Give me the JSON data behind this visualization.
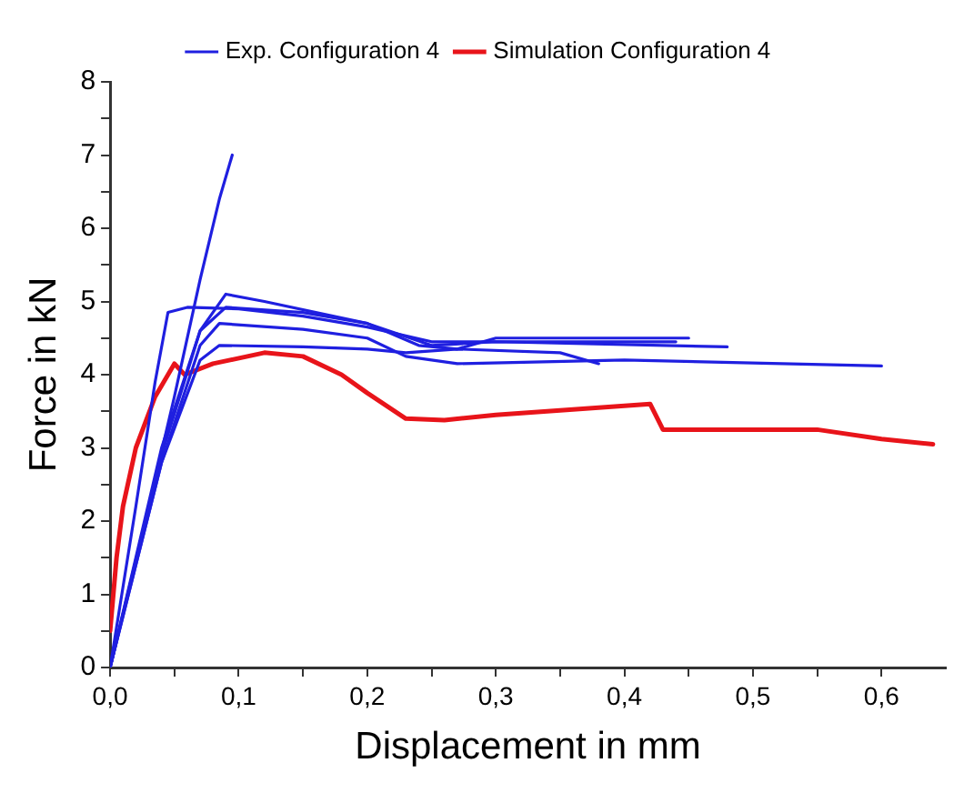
{
  "chart_data": {
    "type": "line",
    "xlabel": "Displacement in mm",
    "ylabel": "Force in kN",
    "xlim": [
      0,
      0.65
    ],
    "ylim": [
      0,
      8
    ],
    "xticks": [
      {
        "value": 0,
        "label": "0,0"
      },
      {
        "value": 0.05,
        "label": null
      },
      {
        "value": 0.1,
        "label": "0,1"
      },
      {
        "value": 0.15,
        "label": null
      },
      {
        "value": 0.2,
        "label": "0,2"
      },
      {
        "value": 0.25,
        "label": null
      },
      {
        "value": 0.3,
        "label": "0,3"
      },
      {
        "value": 0.35,
        "label": null
      },
      {
        "value": 0.4,
        "label": "0,4"
      },
      {
        "value": 0.45,
        "label": null
      },
      {
        "value": 0.5,
        "label": "0,5"
      },
      {
        "value": 0.55,
        "label": null
      },
      {
        "value": 0.6,
        "label": "0,6"
      }
    ],
    "yticks": [
      0,
      {
        "value": 0.5,
        "label": null
      },
      1,
      {
        "value": 1.5,
        "label": null
      },
      2,
      {
        "value": 2.5,
        "label": null
      },
      3,
      {
        "value": 3.5,
        "label": null
      },
      4,
      {
        "value": 4.5,
        "label": null
      },
      5,
      {
        "value": 5.5,
        "label": null
      },
      6,
      {
        "value": 6.5,
        "label": null
      },
      7,
      {
        "value": 7.5,
        "label": null
      },
      8
    ],
    "grid": false,
    "legend": "top",
    "marker": "none",
    "line_style": "solid",
    "series": [
      {
        "name": "Exp. Configuration 4",
        "color": "#1f1fe0",
        "x": [
          0,
          0.03,
          0.05,
          0.07,
          0.085,
          0.095
        ],
        "values": [
          0,
          2.2,
          3.7,
          5.3,
          6.4,
          7
        ]
      },
      {
        "color": "#1f1fe0",
        "x": [
          0,
          0.02,
          0.035,
          0.045,
          0.06,
          0.1,
          0.15,
          0.2,
          0.25,
          0.3,
          0.44
        ],
        "values": [
          0,
          2.2,
          3.9,
          4.85,
          4.92,
          4.9,
          4.8,
          4.65,
          4.45,
          4.45,
          4.45
        ]
      },
      {
        "color": "#1f1fe0",
        "x": [
          0,
          0.04,
          0.07,
          0.09,
          0.12,
          0.2,
          0.24,
          0.27,
          0.3,
          0.45
        ],
        "values": [
          0,
          3,
          4.6,
          5.1,
          5.0,
          4.7,
          4.4,
          4.35,
          4.5,
          4.5
        ]
      },
      {
        "color": "#1f1fe0",
        "x": [
          0,
          0.04,
          0.07,
          0.09,
          0.15,
          0.2,
          0.25,
          0.3,
          0.48
        ],
        "values": [
          0,
          2.9,
          4.6,
          4.92,
          4.85,
          4.7,
          4.4,
          4.45,
          4.38
        ]
      },
      {
        "color": "#1f1fe0",
        "x": [
          0,
          0.04,
          0.07,
          0.085,
          0.15,
          0.2,
          0.23,
          0.27,
          0.4,
          0.6
        ],
        "values": [
          0,
          2.8,
          4.4,
          4.7,
          4.62,
          4.5,
          4.25,
          4.15,
          4.2,
          4.12
        ]
      },
      {
        "color": "#1f1fe0",
        "x": [
          0,
          0.04,
          0.07,
          0.085,
          0.15,
          0.2,
          0.23,
          0.27,
          0.35,
          0.38
        ],
        "values": [
          0,
          2.8,
          4.2,
          4.4,
          4.38,
          4.35,
          4.3,
          4.35,
          4.3,
          4.15
        ]
      },
      {
        "name": "Simulation Configuration 4",
        "color": "#e8141a",
        "x": [
          0,
          0.005,
          0.01,
          0.02,
          0.035,
          0.05,
          0.058,
          0.08,
          0.12,
          0.15,
          0.18,
          0.2,
          0.23,
          0.26,
          0.3,
          0.42,
          0.43,
          0.5,
          0.55,
          0.6,
          0.64
        ],
        "values": [
          0.5,
          1.5,
          2.2,
          3.0,
          3.7,
          4.15,
          4.0,
          4.15,
          4.3,
          4.25,
          4.0,
          3.75,
          3.4,
          3.38,
          3.45,
          3.6,
          3.25,
          3.25,
          3.25,
          3.12,
          3.05
        ]
      }
    ]
  }
}
